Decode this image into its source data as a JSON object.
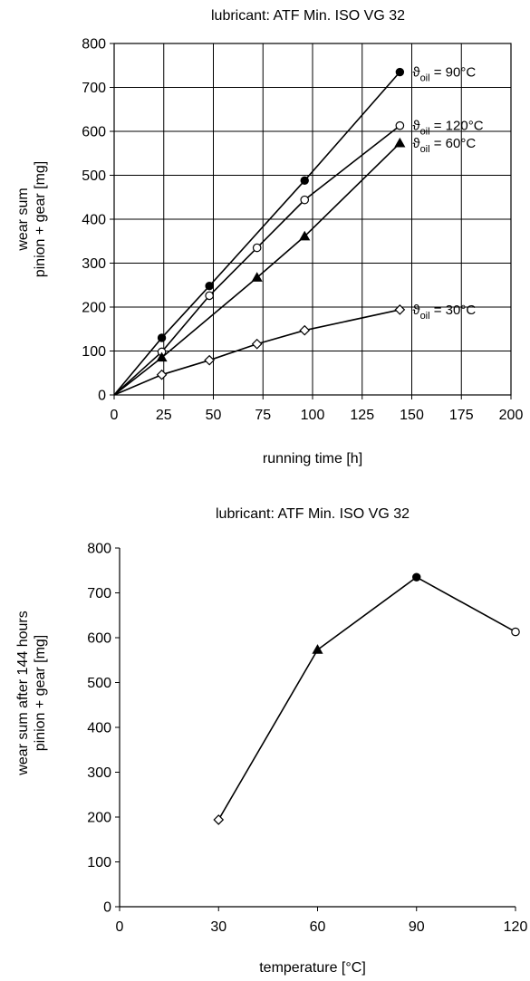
{
  "chart_data": [
    {
      "type": "line",
      "title": "lubricant:  ATF  Min. ISO VG 32",
      "xlabel": "running time  [h]",
      "ylabel_lines": [
        "wear sum",
        "pinion + gear  [mg]"
      ],
      "xlim": [
        0,
        200
      ],
      "ylim": [
        0,
        800
      ],
      "x_ticks": [
        0,
        25,
        50,
        75,
        100,
        125,
        150,
        175,
        200
      ],
      "y_ticks": [
        0,
        100,
        200,
        300,
        400,
        500,
        600,
        700,
        800
      ],
      "grid": true,
      "series": [
        {
          "label_prefix": "ϑ",
          "label_sub": "oil",
          "label_value": "= 90°C",
          "marker": "filled-circle",
          "x": [
            0,
            24,
            48,
            96,
            144
          ],
          "y": [
            0,
            130,
            248,
            488,
            735
          ]
        },
        {
          "label_prefix": "ϑ",
          "label_sub": "oil",
          "label_value": "= 120°C",
          "marker": "open-circle",
          "x": [
            0,
            24,
            48,
            72,
            96,
            144
          ],
          "y": [
            0,
            98,
            226,
            335,
            444,
            613
          ]
        },
        {
          "label_prefix": "ϑ",
          "label_sub": "oil",
          "label_value": "= 60°C",
          "marker": "filled-triangle",
          "x": [
            0,
            24,
            72,
            96,
            144
          ],
          "y": [
            0,
            85,
            267,
            361,
            573
          ]
        },
        {
          "label_prefix": "ϑ",
          "label_sub": "oil",
          "label_value": "= 30°C",
          "marker": "open-diamond",
          "x": [
            0,
            24,
            48,
            72,
            96,
            144
          ],
          "y": [
            0,
            46,
            79,
            116,
            147,
            194
          ]
        }
      ]
    },
    {
      "type": "line",
      "title": "lubricant:  ATF  Min. ISO VG 32",
      "xlabel": "temperature  [°C]",
      "ylabel_lines": [
        "wear sum after 144 hours",
        "pinion + gear  [mg]"
      ],
      "xlim": [
        0,
        120
      ],
      "ylim": [
        0,
        800
      ],
      "x_ticks": [
        0,
        30,
        60,
        90,
        120
      ],
      "y_ticks": [
        0,
        100,
        200,
        300,
        400,
        500,
        600,
        700,
        800
      ],
      "grid": false,
      "points": [
        {
          "x": 30,
          "y": 194,
          "marker": "open-diamond"
        },
        {
          "x": 60,
          "y": 573,
          "marker": "filled-triangle"
        },
        {
          "x": 90,
          "y": 735,
          "marker": "filled-circle"
        },
        {
          "x": 120,
          "y": 613,
          "marker": "open-circle"
        }
      ]
    }
  ]
}
